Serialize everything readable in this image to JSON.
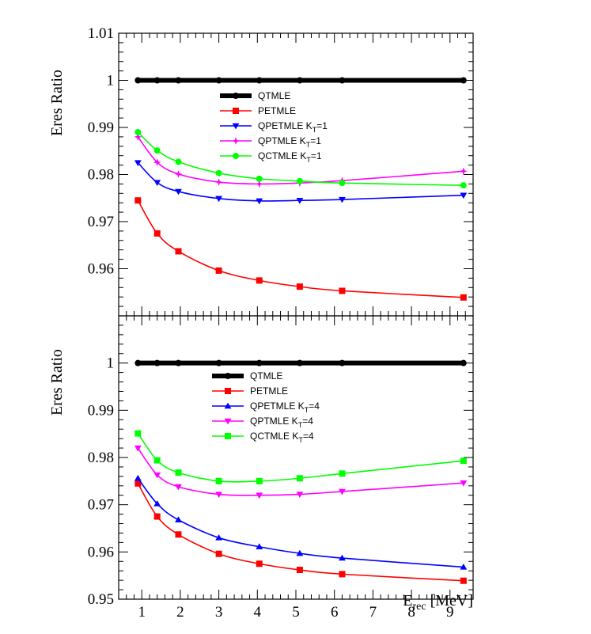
{
  "colors": {
    "QTMLE": "#000000",
    "PETMLE": "#ff0000",
    "QPETMLE": "#0000ff",
    "QPTMLE": "#ff00ff",
    "QCTMLE": "#00ff00"
  },
  "chart_data": [
    {
      "type": "line",
      "panel": "top",
      "ylabel": "Eres Ratio",
      "xlim": [
        0.4,
        9.6
      ],
      "ylim": [
        0.95,
        1.01
      ],
      "yticks": [
        "0.96",
        "0.97",
        "0.98",
        "0.99",
        "1",
        "1.01"
      ],
      "grid": false,
      "legend_position": "center",
      "x": [
        0.9,
        1.4,
        1.95,
        3.0,
        4.05,
        5.1,
        6.2,
        9.35
      ],
      "series": [
        {
          "name": "QTMLE",
          "key": "QTMLE",
          "marker": "circle",
          "values": [
            1.0,
            1.0,
            1.0,
            1.0,
            1.0,
            1.0,
            1.0,
            1.0
          ]
        },
        {
          "name": "PETMLE",
          "key": "PETMLE",
          "marker": "square",
          "values": [
            0.9745,
            0.9675,
            0.9637,
            0.9596,
            0.9575,
            0.9562,
            0.9553,
            0.9539
          ]
        },
        {
          "name": "QPETMLE K",
          "sub": "T",
          "suffix": "=1",
          "key": "QPETMLE",
          "marker": "triangle-down",
          "values": [
            0.9825,
            0.9783,
            0.9764,
            0.9749,
            0.9744,
            0.9745,
            0.9747,
            0.9756
          ]
        },
        {
          "name": "QPTMLE K",
          "sub": "T",
          "suffix": "=1",
          "key": "QPTMLE",
          "marker": "star",
          "values": [
            0.988,
            0.9826,
            0.9801,
            0.9784,
            0.978,
            0.9782,
            0.9787,
            0.9807
          ]
        },
        {
          "name": "QCTMLE   K",
          "sub": "T",
          "suffix": "=1",
          "key": "QCTMLE",
          "marker": "circle",
          "values": [
            0.989,
            0.9851,
            0.9827,
            0.9803,
            0.9791,
            0.9786,
            0.9782,
            0.9777
          ]
        }
      ]
    },
    {
      "type": "line",
      "panel": "bottom",
      "ylabel": "Eres Ratio",
      "xlabel": "E",
      "xlabel_sub": "rec",
      "xlabel_suffix": " [MeV]",
      "xlim": [
        0.4,
        9.6
      ],
      "ylim": [
        0.95,
        1.01
      ],
      "xticks": [
        "1",
        "2",
        "3",
        "4",
        "5",
        "6",
        "7",
        "8",
        "9"
      ],
      "yticks": [
        "0.95",
        "0.96",
        "0.97",
        "0.98",
        "0.99",
        "1"
      ],
      "grid": false,
      "legend_position": "center",
      "x": [
        0.9,
        1.4,
        1.95,
        3.0,
        4.05,
        5.1,
        6.2,
        9.35
      ],
      "series": [
        {
          "name": "QTMLE",
          "key": "QTMLE",
          "marker": "circle",
          "values": [
            1.0,
            1.0,
            1.0,
            1.0,
            1.0,
            1.0,
            1.0,
            1.0
          ]
        },
        {
          "name": "PETMLE",
          "key": "PETMLE",
          "marker": "square",
          "values": [
            0.9745,
            0.9675,
            0.9637,
            0.9596,
            0.9575,
            0.9562,
            0.9553,
            0.9539
          ]
        },
        {
          "name": "QPETMLE K",
          "sub": "T",
          "suffix": "=4",
          "key": "QPETMLE",
          "marker": "triangle-up",
          "values": [
            0.9756,
            0.9702,
            0.9668,
            0.963,
            0.9611,
            0.9597,
            0.9587,
            0.9568
          ]
        },
        {
          "name": "QPTMLE K",
          "sub": "T",
          "suffix": "=4",
          "key": "QPTMLE",
          "marker": "triangle-down",
          "values": [
            0.982,
            0.9763,
            0.9738,
            0.9722,
            0.972,
            0.9722,
            0.9728,
            0.9746
          ]
        },
        {
          "name": "QCTMLE   K",
          "sub": "T",
          "suffix": "=4",
          "key": "QCTMLE",
          "marker": "square",
          "values": [
            0.9851,
            0.9794,
            0.9768,
            0.975,
            0.975,
            0.9756,
            0.9766,
            0.9793
          ]
        }
      ]
    }
  ]
}
